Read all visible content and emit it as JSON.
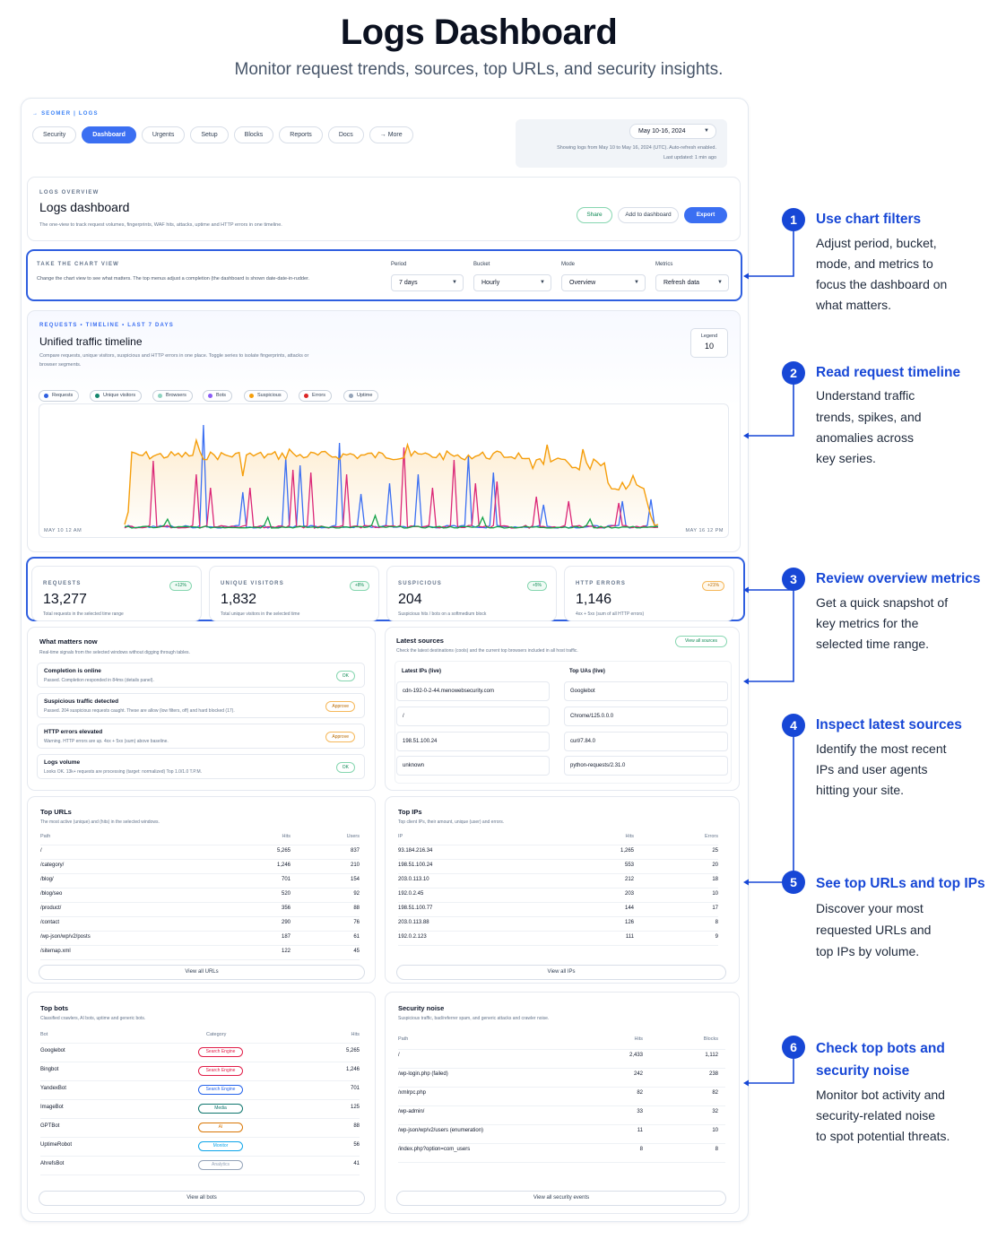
{
  "header": {
    "title": "Logs Dashboard",
    "subtitle": "Monitor request trends, sources, top URLs, and security insights."
  },
  "nav": {
    "breadcrumb": "→ SEOMER  |  LOGS",
    "tabs": [
      "Security",
      "Dashboard",
      "Urgents",
      "Setup",
      "Blocks",
      "Reports",
      "Docs",
      "→  More"
    ],
    "active_tab": "Dashboard",
    "date_range": "May 10-16, 2024",
    "date_note_1": "Showing logs from May 10 to May 16, 2024 (UTC). Auto-refresh enabled.",
    "date_note_2": "Last updated: 1 min ago"
  },
  "overview": {
    "caption": "LOGS OVERVIEW",
    "title": "Logs dashboard",
    "description": "The one-view to track request volumes, fingerprints, WAF hits, attacks, uptime and HTTP errors in one timeline.",
    "share_label": "Share",
    "add_label": "Add to dashboard",
    "export_label": "Export"
  },
  "filters": {
    "caption": "TAKE THE CHART VIEW",
    "description": "Change the chart view to see what matters. The top menus adjust a completion (the dashboard is shown date-date-in-rudder.",
    "period_label": "Period",
    "period_value": "7 days",
    "bucket_label": "Bucket",
    "bucket_value": "Hourly",
    "mode_label": "Mode",
    "mode_value": "Overview",
    "metrics_label": "Metrics",
    "metrics_value": "Refresh data"
  },
  "timeline": {
    "caption": "REQUESTS  •  TIMELINE  •  LAST 7 DAYS",
    "title": "Unified traffic timeline",
    "description_1": "Compare requests, unique visitors, suspicious and HTTP errors in one place. Toggle series to isolate fingerprints, attacks or",
    "description_2": "browser segments.",
    "legend_label": "Legend",
    "legend_count": "10",
    "start_label": "MAY 10 12 AM",
    "end_label": "MAY 16 12 PM",
    "chips": [
      {
        "label": "Requests",
        "color": "#2f5fe0"
      },
      {
        "label": "Unique visitors",
        "color": "#14866d"
      },
      {
        "label": "Browsers",
        "color": "#8fd3c0"
      },
      {
        "label": "Bots",
        "color": "#8b5cf6"
      },
      {
        "label": "Suspicious",
        "color": "#f59e0b"
      },
      {
        "label": "Errors",
        "color": "#dc2626"
      },
      {
        "label": "Uptime",
        "color": "#94a3b8"
      }
    ]
  },
  "metrics": [
    {
      "label": "REQUESTS",
      "value": "13,277",
      "badge": "+12%",
      "foot": "Total requests in the selected time range"
    },
    {
      "label": "UNIQUE VISITORS",
      "value": "1,832",
      "badge": "+8%",
      "foot": "Total unique visitors in the selected time"
    },
    {
      "label": "SUSPICIOUS",
      "value": "204",
      "badge": "+5%",
      "foot": "Suspicious hits / bots on a softmedium block"
    },
    {
      "label": "HTTP ERRORS",
      "value": "1,146",
      "badge": "+21%",
      "foot": "4xx + 5xx (sum of all HTTP errors)"
    }
  ],
  "what_matters": {
    "title": "What matters now",
    "subtitle": "Real-time signals from the selected windows without digging through tables.",
    "items": [
      {
        "title": "Completion is online",
        "detail": "Passed. Completion responded in 84ms (details panel).",
        "status": "OK"
      },
      {
        "title": "Suspicious traffic detected",
        "detail": "Passed. 204 suspicious requests caught. These are allow (low filters, off) and hard blocked (17).",
        "status": "Approve"
      },
      {
        "title": "HTTP errors elevated",
        "detail": "Warning. HTTP errors are up. 4xx + 5xx (sum) above baseline.",
        "status": "Approve"
      },
      {
        "title": "Logs volume",
        "detail": "Looks OK. 13k+ requests are processing (target: normalized) Top 1.0/1.0 T.P.M.",
        "status": "OK"
      }
    ]
  },
  "latest_sources": {
    "title": "Latest sources",
    "subtitle": "Check the latest destinations (cools) and the current top browsers included in all host traffic.",
    "view_all": "View all sources",
    "ips_label": "Latest IPs (live)",
    "uas_label": "Top UAs (live)",
    "ips": [
      "cdn-192-0-2-44.menowebsecurity.com",
      "/",
      "198.51.100.24",
      "unknown"
    ],
    "uas": [
      "Googlebot",
      "Chrome/125.0.0.0",
      "curl/7.84.0",
      "python-requests/2.31.0"
    ]
  },
  "top_urls": {
    "title": "Top URLs",
    "subtitle": "The most active (unique) and (hits) in the selected windows.",
    "headers": [
      "Path",
      "Hits",
      "Users"
    ],
    "rows": [
      [
        "/",
        "5,265",
        "837"
      ],
      [
        "/category/",
        "1,246",
        "210"
      ],
      [
        "/blog/",
        "701",
        "154"
      ],
      [
        "/blog/seo",
        "520",
        "92"
      ],
      [
        "/product/",
        "356",
        "88"
      ],
      [
        "/contact",
        "290",
        "76"
      ],
      [
        "/wp-json/wp/v2/posts",
        "187",
        "61"
      ],
      [
        "/sitemap.xml",
        "122",
        "45"
      ]
    ],
    "view_all": "View all URLs"
  },
  "top_ips": {
    "title": "Top IPs",
    "subtitle": "Top client IPs, their amount, unique (user) and errors.",
    "headers": [
      "IP",
      "Hits",
      "Errors"
    ],
    "rows": [
      [
        "93.184.216.34",
        "1,265",
        "25"
      ],
      [
        "198.51.100.24",
        "553",
        "20"
      ],
      [
        "203.0.113.10",
        "212",
        "18"
      ],
      [
        "192.0.2.45",
        "203",
        "10"
      ],
      [
        "198.51.100.77",
        "144",
        "17"
      ],
      [
        "203.0.113.88",
        "126",
        "8"
      ],
      [
        "192.0.2.123",
        "111",
        "9"
      ]
    ],
    "view_all": "View all IPs"
  },
  "top_bots": {
    "title": "Top bots",
    "subtitle": "Classified crawlers, AI bots, uptime and generic bots.",
    "headers": [
      "Bot",
      "Category",
      "Hits"
    ],
    "rows": [
      {
        "bot": "Googlebot",
        "category": "Search Engine",
        "hits": "5,265",
        "color": "#e11d48"
      },
      {
        "bot": "Bingbot",
        "category": "Search Engine",
        "hits": "1,246",
        "color": "#e11d48"
      },
      {
        "bot": "YandexBot",
        "category": "Search Engine",
        "hits": "701",
        "color": "#2563eb"
      },
      {
        "bot": "ImageBot",
        "category": "Media",
        "hits": "125",
        "color": "#0f766e"
      },
      {
        "bot": "GPTBot",
        "category": "AI",
        "hits": "88",
        "color": "#d97706"
      },
      {
        "bot": "UptimeRobot",
        "category": "Monitor",
        "hits": "56",
        "color": "#0ea5e9"
      },
      {
        "bot": "AhrefsBot",
        "category": "Analytics",
        "hits": "41",
        "color": "#94a3b8"
      }
    ],
    "view_all": "View all bots"
  },
  "security_noise": {
    "title": "Security noise",
    "subtitle": "Suspicious traffic, bad/referrer spam, and generic attacks and crawler noise.",
    "headers": [
      "Path",
      "Hits",
      "Blocks"
    ],
    "rows": [
      [
        "/",
        "2,433",
        "1,112"
      ],
      [
        "/wp-login.php (failed)",
        "242",
        "238"
      ],
      [
        "/xmlrpc.php",
        "82",
        "82"
      ],
      [
        "/wp-admin/",
        "33",
        "32"
      ],
      [
        "/wp-json/wp/v2/users (enumeration)",
        "11",
        "10"
      ],
      [
        "/index.php?option=com_users",
        "8",
        "8"
      ]
    ],
    "view_all": "View all security events"
  },
  "annotations": [
    {
      "num": "1",
      "title_1": "Use chart filters",
      "title_2": "",
      "lines": [
        "Adjust period, bucket,",
        "mode, and metrics to",
        "focus the dashboard on",
        "what matters."
      ]
    },
    {
      "num": "2",
      "title_1": "Read request timeline",
      "title_2": "",
      "lines": [
        "Understand traffic",
        "trends, spikes, and",
        "anomalies across",
        "key series."
      ]
    },
    {
      "num": "3",
      "title_1": "Review overview metrics",
      "title_2": "",
      "lines": [
        "Get a quick snapshot of",
        "key metrics for the",
        "selected time range."
      ]
    },
    {
      "num": "4",
      "title_1": "Inspect latest sources",
      "title_2": "",
      "lines": [
        "Identify the most recent",
        "IPs and user agents",
        "hitting your site."
      ]
    },
    {
      "num": "5",
      "title_1": "See top URLs and top IPs",
      "title_2": "",
      "lines": [
        "Discover your most",
        "requested URLs and",
        "top IPs by volume."
      ]
    },
    {
      "num": "6",
      "title_1": "Check top bots and",
      "title_2": "security noise",
      "lines": [
        "Monitor bot activity and",
        "security-related noise",
        "to spot potential threats."
      ]
    }
  ],
  "colors": {
    "accent": "#1747d6",
    "primary_button": "#3b6ff2",
    "requests_line": "#f59e0b",
    "spike_blue": "#3b6ff2",
    "spike_pink": "#db2777",
    "spike_green": "#16a34a"
  }
}
